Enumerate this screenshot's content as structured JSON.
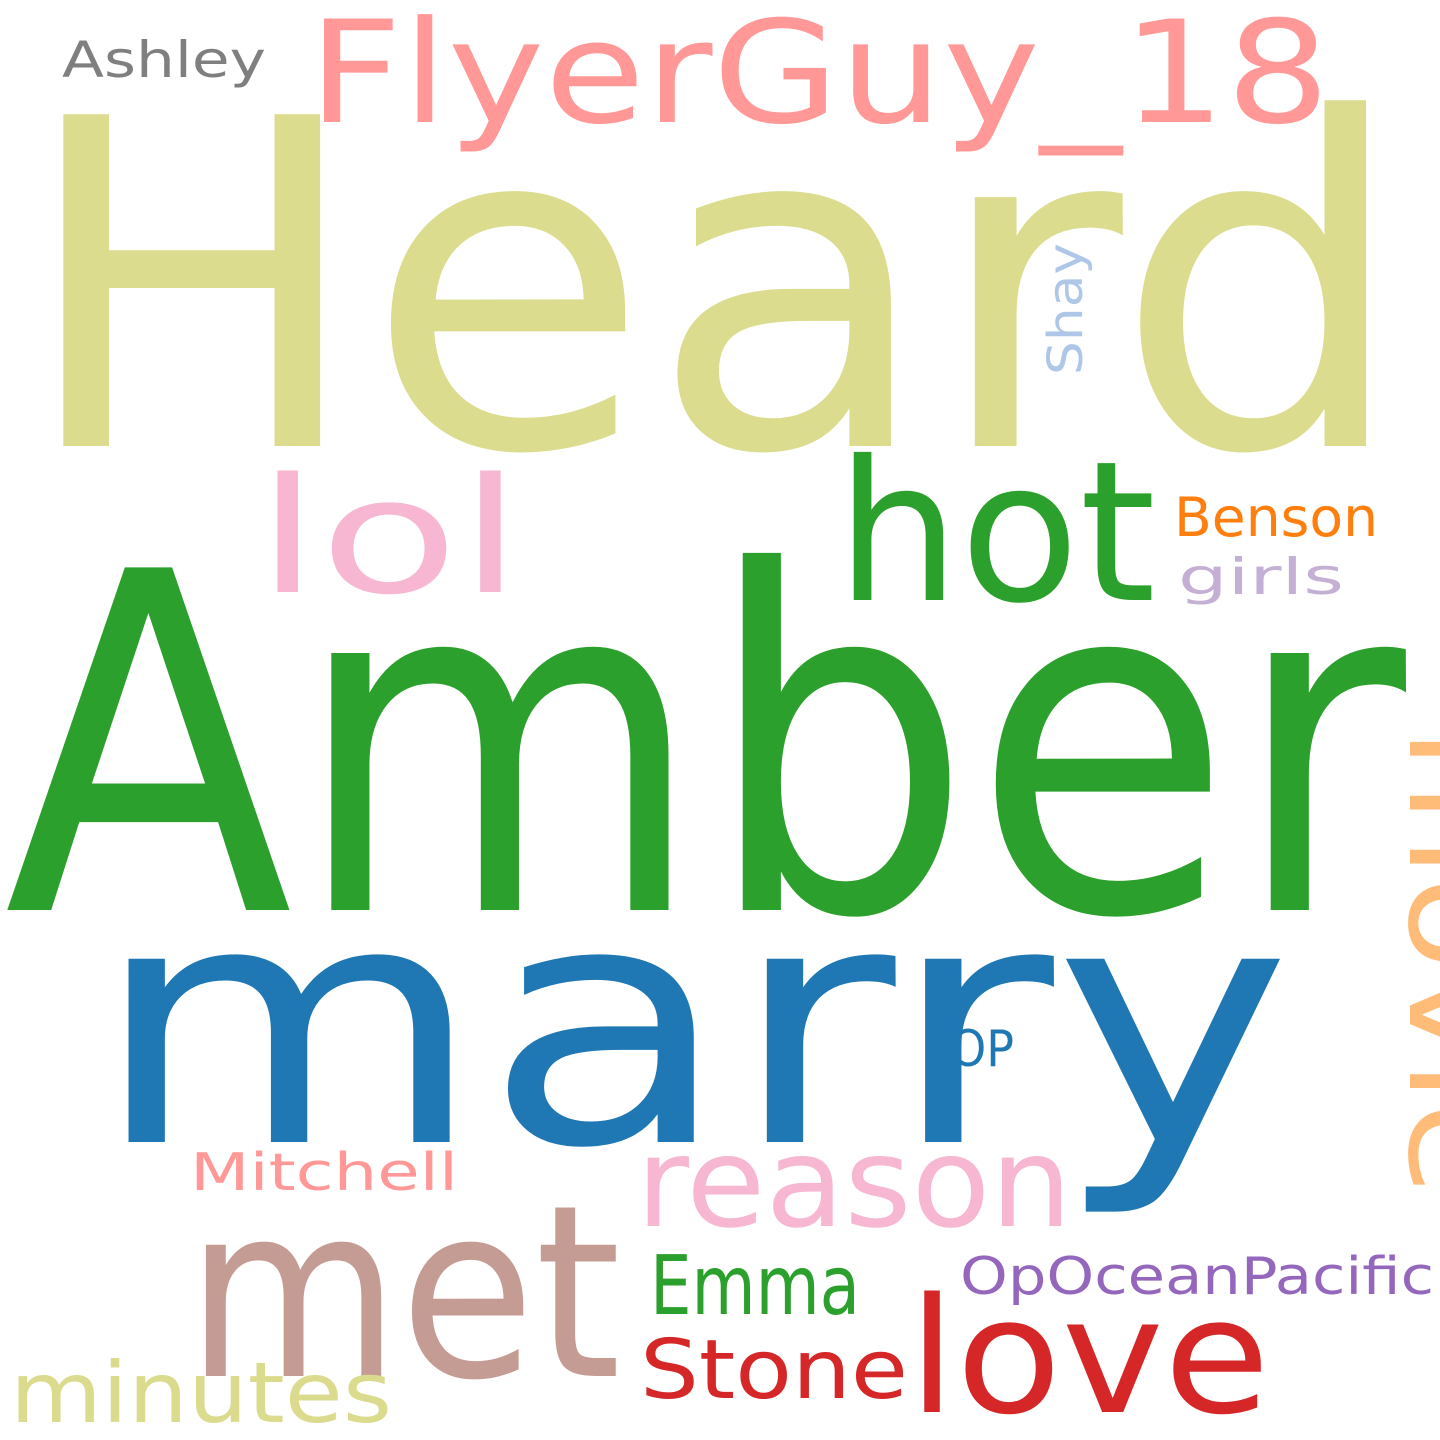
{
  "words": [
    {
      "text": "Heard",
      "color": "#dbdc8d"
    },
    {
      "text": "Amber",
      "color": "#2ca02c"
    },
    {
      "text": "marry",
      "color": "#1f77b4"
    },
    {
      "text": "FlyerGuy_18",
      "color": "#ff9896"
    },
    {
      "text": "hot",
      "color": "#2ca02c"
    },
    {
      "text": "lol",
      "color": "#f7b6d2"
    },
    {
      "text": "movie",
      "color": "#ffbb78"
    },
    {
      "text": "met",
      "color": "#c49c94"
    },
    {
      "text": "reason",
      "color": "#f7b6d2"
    },
    {
      "text": "love",
      "color": "#d62728"
    },
    {
      "text": "Emma",
      "color": "#2ca02c"
    },
    {
      "text": "Stone",
      "color": "#d62728"
    },
    {
      "text": "minutes",
      "color": "#dbdb8d"
    },
    {
      "text": "OpOceanPacific",
      "color": "#9467bd"
    },
    {
      "text": "Mitchell",
      "color": "#ff9896"
    },
    {
      "text": "Benson",
      "color": "#ff7f0e"
    },
    {
      "text": "girls",
      "color": "#c5b0d5"
    },
    {
      "text": "Ashley",
      "color": "#7f7f7f"
    },
    {
      "text": "Shay",
      "color": "#aec7e8"
    },
    {
      "text": "OP",
      "color": "#1f77b4"
    }
  ]
}
